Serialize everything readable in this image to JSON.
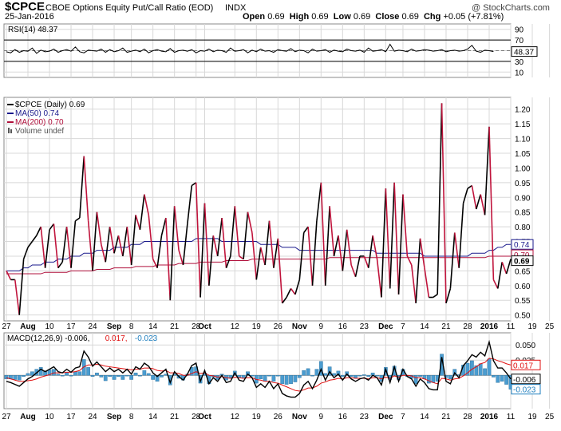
{
  "header": {
    "symbol": "$CPCE",
    "name": "CBOE Options Equity Put/Call Ratio (EOD)",
    "exchange": "INDX",
    "date": "25-Jan-2016",
    "watermark": "@ StockCharts.com",
    "open_label": "Open",
    "open": "0.69",
    "high_label": "High",
    "high": "0.69",
    "low_label": "Low",
    "low": "0.69",
    "close_label": "Close",
    "close": "0.69",
    "chg_label": "Chg",
    "chg": "+0.05 (+7.81%)",
    "chg_color": "#000000"
  },
  "colors": {
    "price_up": "#000000",
    "price_down": "#c0143c",
    "ma50": "#1a1a8c",
    "ma200": "#b0103c",
    "macd": "#000000",
    "signal": "#e01010",
    "histogram": "#4a9cd0",
    "grid": "#d8d8d8"
  },
  "chart_data": [
    {
      "type": "line",
      "panel": "rsi",
      "legend": "RSI(14) 48.37",
      "y_ticks": [
        10,
        30,
        50,
        70,
        90
      ],
      "ylim": [
        0,
        100
      ],
      "last_label": "48.37",
      "values": [
        48,
        46,
        52,
        47,
        50,
        49,
        55,
        45,
        51,
        48,
        49,
        53,
        47,
        50,
        52,
        49,
        57,
        48,
        46,
        51,
        50,
        49,
        53,
        47,
        52,
        48,
        50,
        55,
        47,
        49,
        51,
        48,
        53,
        46,
        50,
        52,
        49,
        48,
        54,
        47,
        50,
        51,
        49,
        52,
        46,
        50,
        49,
        53,
        48,
        51,
        50,
        47,
        55,
        49,
        50,
        52,
        46,
        51,
        48,
        53,
        49,
        50,
        47,
        52,
        50,
        49,
        54,
        48,
        51,
        50,
        46,
        53,
        49,
        50,
        52,
        47,
        51,
        49,
        48,
        53,
        50,
        49,
        51,
        47,
        55,
        49,
        50,
        52,
        48,
        62,
        49,
        51,
        50,
        48,
        53,
        49,
        50,
        52,
        51,
        49,
        50,
        52,
        48,
        50,
        51,
        49,
        50,
        53,
        60,
        49,
        47,
        51,
        50,
        48.37
      ]
    },
    {
      "type": "line",
      "panel": "price",
      "ylim": [
        0.48,
        1.24
      ],
      "y_ticks": [
        0.5,
        0.55,
        0.6,
        0.65,
        0.7,
        0.75,
        0.8,
        0.85,
        0.9,
        0.95,
        1.0,
        1.05,
        1.1,
        1.15,
        1.2
      ],
      "y_tick_labels": [
        "0.50",
        "0.55",
        "0.60",
        "0.65",
        "0.70",
        "0.75",
        "0.80",
        "0.85",
        "0.90",
        "0.95",
        "1.00",
        "1.05",
        "1.10",
        "1.15",
        "1.20"
      ],
      "legend": [
        {
          "text": "$CPCE (Daily) 0.69",
          "color": "#000000",
          "marker": "line"
        },
        {
          "text": "MA(50) 0.74",
          "color": "#1a1a8c",
          "marker": "line"
        },
        {
          "text": "MA(200) 0.70",
          "color": "#b0103c",
          "marker": "line"
        },
        {
          "text": "Volume undef",
          "color": "#555555",
          "marker": "bars"
        }
      ],
      "x_labels": [
        "27",
        "Aug",
        "10",
        "17",
        "24",
        "Sep",
        "8",
        "14",
        "21",
        "28",
        "Oct",
        "12",
        "19",
        "26",
        "Nov",
        "9",
        "16",
        "23",
        "Dec",
        "7",
        "14",
        "21",
        "28",
        "2016",
        "11",
        "19",
        "25"
      ],
      "x_label_index": [
        0,
        5,
        10,
        15,
        20,
        25,
        29,
        34,
        39,
        44,
        46,
        53,
        58,
        63,
        68,
        73,
        78,
        83,
        88,
        92,
        97,
        102,
        107,
        112,
        117,
        122,
        126
      ],
      "bold_x_labels": [
        "Aug",
        "Sep",
        "Oct",
        "Nov",
        "Dec",
        "2016"
      ],
      "last_labels": {
        "ma50": "0.74",
        "ma200": "0.70",
        "close": "0.69"
      },
      "series": [
        {
          "name": "$CPCE (Daily)",
          "values": [
            0.65,
            0.62,
            0.62,
            0.5,
            0.69,
            0.73,
            0.75,
            0.77,
            0.8,
            0.66,
            0.79,
            0.81,
            0.66,
            0.68,
            0.8,
            0.66,
            0.82,
            0.83,
            1.04,
            0.82,
            0.65,
            0.85,
            0.74,
            0.68,
            0.8,
            0.71,
            0.77,
            0.7,
            0.8,
            0.67,
            0.84,
            0.79,
            0.91,
            0.84,
            0.69,
            0.66,
            0.77,
            0.83,
            0.55,
            0.87,
            0.72,
            0.67,
            0.81,
            0.94,
            0.95,
            0.56,
            0.88,
            0.6,
            0.77,
            0.7,
            0.83,
            0.66,
            0.7,
            0.87,
            0.7,
            0.69,
            0.85,
            0.78,
            0.62,
            0.73,
            0.67,
            0.82,
            0.66,
            0.76,
            0.54,
            0.56,
            0.59,
            0.57,
            0.62,
            0.78,
            0.8,
            0.6,
            0.82,
            0.95,
            0.6,
            0.87,
            0.7,
            0.77,
            0.65,
            0.79,
            0.67,
            0.63,
            0.7,
            0.7,
            0.66,
            0.77,
            0.69,
            0.56,
            0.93,
            0.59,
            0.95,
            0.57,
            0.91,
            0.7,
            0.67,
            0.54,
            0.76,
            0.66,
            0.56,
            0.56,
            0.57,
            1.22,
            0.54,
            0.59,
            0.78,
            0.66,
            0.88,
            0.93,
            0.94,
            0.86,
            0.91,
            0.84,
            1.14,
            0.62,
            0.59,
            0.68,
            0.64,
            0.69
          ]
        },
        {
          "name": "MA(50)",
          "values": [
            0.65,
            0.65,
            0.65,
            0.65,
            0.66,
            0.66,
            0.67,
            0.67,
            0.67,
            0.68,
            0.68,
            0.68,
            0.69,
            0.69,
            0.69,
            0.7,
            0.7,
            0.7,
            0.71,
            0.71,
            0.71,
            0.72,
            0.72,
            0.72,
            0.72,
            0.73,
            0.73,
            0.73,
            0.73,
            0.74,
            0.74,
            0.74,
            0.75,
            0.75,
            0.75,
            0.75,
            0.75,
            0.75,
            0.75,
            0.75,
            0.75,
            0.75,
            0.75,
            0.75,
            0.76,
            0.76,
            0.76,
            0.76,
            0.76,
            0.76,
            0.75,
            0.75,
            0.75,
            0.75,
            0.75,
            0.75,
            0.75,
            0.75,
            0.75,
            0.74,
            0.74,
            0.74,
            0.74,
            0.74,
            0.73,
            0.73,
            0.73,
            0.73,
            0.72,
            0.72,
            0.72,
            0.72,
            0.72,
            0.72,
            0.72,
            0.72,
            0.72,
            0.72,
            0.72,
            0.72,
            0.72,
            0.72,
            0.72,
            0.72,
            0.72,
            0.72,
            0.71,
            0.71,
            0.71,
            0.71,
            0.71,
            0.71,
            0.71,
            0.71,
            0.71,
            0.71,
            0.71,
            0.7,
            0.7,
            0.7,
            0.7,
            0.7,
            0.7,
            0.7,
            0.7,
            0.7,
            0.7,
            0.7,
            0.71,
            0.71,
            0.71,
            0.71,
            0.72,
            0.72,
            0.73,
            0.73,
            0.74,
            0.74
          ]
        },
        {
          "name": "MA(200)",
          "values": [
            0.64,
            0.64,
            0.64,
            0.64,
            0.64,
            0.64,
            0.64,
            0.64,
            0.64,
            0.645,
            0.645,
            0.645,
            0.645,
            0.645,
            0.645,
            0.65,
            0.65,
            0.65,
            0.65,
            0.65,
            0.65,
            0.655,
            0.655,
            0.655,
            0.655,
            0.66,
            0.66,
            0.66,
            0.66,
            0.66,
            0.665,
            0.665,
            0.665,
            0.665,
            0.665,
            0.67,
            0.67,
            0.67,
            0.67,
            0.67,
            0.675,
            0.675,
            0.675,
            0.675,
            0.675,
            0.68,
            0.68,
            0.68,
            0.68,
            0.68,
            0.68,
            0.685,
            0.685,
            0.685,
            0.685,
            0.685,
            0.685,
            0.69,
            0.69,
            0.69,
            0.69,
            0.69,
            0.69,
            0.69,
            0.69,
            0.69,
            0.69,
            0.69,
            0.69,
            0.69,
            0.69,
            0.69,
            0.69,
            0.69,
            0.69,
            0.695,
            0.695,
            0.695,
            0.695,
            0.695,
            0.695,
            0.695,
            0.695,
            0.695,
            0.695,
            0.695,
            0.695,
            0.695,
            0.695,
            0.695,
            0.695,
            0.695,
            0.695,
            0.695,
            0.695,
            0.695,
            0.695,
            0.695,
            0.695,
            0.695,
            0.695,
            0.695,
            0.695,
            0.695,
            0.695,
            0.695,
            0.695,
            0.695,
            0.695,
            0.695,
            0.695,
            0.695,
            0.7,
            0.7,
            0.7,
            0.7,
            0.7,
            0.7
          ]
        }
      ]
    },
    {
      "type": "line",
      "panel": "macd",
      "legend": [
        {
          "text": "MACD(12,26,9) -0.006,",
          "color": "#000000"
        },
        {
          "text": "0.017,",
          "color": "#e01010"
        },
        {
          "text": "-0.023",
          "color": "#1f7fbf"
        }
      ],
      "ylim": [
        -0.055,
        0.07
      ],
      "y_ticks": [
        0.05,
        0.025
      ],
      "y_tick_labels": [
        "0.050",
        "0.025"
      ],
      "last_labels": {
        "signal": "0.017",
        "macd": "-0.006",
        "histogram": "-0.023"
      },
      "series": [
        {
          "name": "MACD",
          "values": [
            -0.01,
            -0.012,
            -0.015,
            -0.018,
            -0.012,
            -0.006,
            -0.002,
            0.004,
            0.01,
            0.006,
            0.01,
            0.014,
            0.006,
            0.004,
            0.01,
            0.005,
            0.012,
            0.014,
            0.04,
            0.03,
            0.015,
            0.022,
            0.014,
            0.006,
            0.012,
            0.006,
            0.01,
            0.004,
            0.01,
            0.002,
            0.014,
            0.01,
            0.02,
            0.015,
            0.004,
            -0.002,
            0.004,
            0.01,
            -0.012,
            0.006,
            -0.002,
            -0.008,
            0.002,
            0.016,
            0.02,
            -0.01,
            0.008,
            -0.014,
            -0.004,
            -0.01,
            0.0,
            -0.012,
            -0.01,
            0.004,
            -0.008,
            -0.01,
            0.002,
            -0.004,
            -0.02,
            -0.014,
            -0.02,
            -0.01,
            -0.022,
            -0.014,
            -0.03,
            -0.034,
            -0.036,
            -0.036,
            -0.03,
            -0.016,
            -0.01,
            -0.022,
            -0.008,
            0.01,
            -0.008,
            0.006,
            -0.004,
            0.002,
            -0.008,
            0.002,
            -0.006,
            -0.01,
            -0.006,
            -0.004,
            -0.008,
            0.0,
            -0.004,
            -0.016,
            0.01,
            -0.012,
            0.014,
            -0.01,
            0.01,
            -0.002,
            -0.006,
            -0.018,
            -0.006,
            -0.012,
            -0.022,
            -0.024,
            -0.024,
            0.03,
            -0.01,
            -0.014,
            0.004,
            -0.004,
            0.016,
            0.024,
            0.034,
            0.03,
            0.038,
            0.032,
            0.055,
            0.024,
            0.012,
            0.012,
            0.004,
            -0.006
          ]
        },
        {
          "name": "Signal",
          "values": [
            -0.004,
            -0.006,
            -0.008,
            -0.01,
            -0.01,
            -0.009,
            -0.008,
            -0.006,
            -0.003,
            -0.001,
            0.001,
            0.004,
            0.004,
            0.004,
            0.005,
            0.005,
            0.006,
            0.008,
            0.014,
            0.017,
            0.017,
            0.018,
            0.017,
            0.015,
            0.014,
            0.013,
            0.012,
            0.011,
            0.01,
            0.009,
            0.01,
            0.01,
            0.012,
            0.012,
            0.011,
            0.008,
            0.007,
            0.008,
            0.004,
            0.004,
            0.003,
            0.0,
            0.0,
            0.003,
            0.006,
            0.003,
            0.004,
            0.0,
            -0.001,
            -0.003,
            -0.002,
            -0.004,
            -0.005,
            -0.003,
            -0.004,
            -0.005,
            -0.004,
            -0.004,
            -0.007,
            -0.008,
            -0.01,
            -0.01,
            -0.012,
            -0.013,
            -0.016,
            -0.019,
            -0.022,
            -0.025,
            -0.026,
            -0.024,
            -0.021,
            -0.021,
            -0.018,
            -0.013,
            -0.011,
            -0.008,
            -0.007,
            -0.005,
            -0.006,
            -0.004,
            -0.004,
            -0.005,
            -0.005,
            -0.005,
            -0.006,
            -0.004,
            -0.004,
            -0.006,
            -0.003,
            -0.005,
            -0.001,
            -0.003,
            0.0,
            0.0,
            -0.001,
            -0.004,
            -0.004,
            -0.006,
            -0.009,
            -0.012,
            -0.014,
            -0.005,
            -0.006,
            -0.008,
            -0.006,
            -0.005,
            -0.001,
            0.004,
            0.01,
            0.014,
            0.019,
            0.021,
            0.028,
            0.027,
            0.024,
            0.022,
            0.019,
            0.017
          ]
        },
        {
          "name": "Histogram",
          "values": []
        }
      ],
      "x_labels": [
        "27",
        "Aug",
        "10",
        "17",
        "24",
        "Sep",
        "8",
        "14",
        "21",
        "28",
        "Oct",
        "12",
        "19",
        "26",
        "Nov",
        "9",
        "16",
        "23",
        "Dec",
        "7",
        "14",
        "21",
        "28",
        "2016",
        "11",
        "19",
        "25"
      ]
    }
  ]
}
